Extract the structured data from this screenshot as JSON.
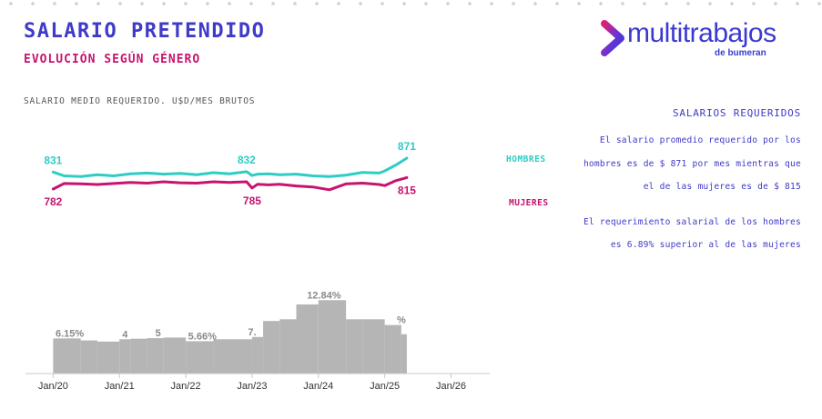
{
  "header": {
    "title": "SALARIO PRETENDIDO",
    "subtitle": "EVOLUCIÓN SEGÚN GÉNERO",
    "unit_label": "SALARIO MEDIO REQUERIDO. U$D/MES BRUTOS"
  },
  "logo": {
    "name": "multitrabajos",
    "tagline": "de bumeran",
    "mark_color": "#3b3ad0"
  },
  "panel": {
    "title": "SALARIOS REQUERIDOS",
    "paragraph1": "El salario promedio requerido por los hombres es de $ 871 por mes mientras que el de las mujeres es de $ 815",
    "paragraph2": "El requerimiento salarial de los hombres es 6.89% superior al de las mujeres"
  },
  "colors": {
    "men": "#2ecdc4",
    "women": "#c8136f",
    "bars": "#b5b5b5",
    "accent": "#3f3ac9"
  },
  "chart_data": [
    {
      "type": "line",
      "x_unit": "month",
      "series": [
        {
          "name": "HOMBRES",
          "color": "#2ecdc4",
          "x": [
            "2020-01",
            "2020-03",
            "2020-06",
            "2020-09",
            "2020-12",
            "2021-03",
            "2021-06",
            "2021-09",
            "2021-12",
            "2022-03",
            "2022-06",
            "2022-09",
            "2022-12",
            "2023-01",
            "2023-02",
            "2023-04",
            "2023-06",
            "2023-09",
            "2023-12",
            "2024-03",
            "2024-06",
            "2024-09",
            "2024-12",
            "2025-01",
            "2025-03",
            "2025-05"
          ],
          "y": [
            831,
            820,
            818,
            823,
            820,
            826,
            828,
            825,
            827,
            823,
            829,
            826,
            832,
            821,
            825,
            826,
            823,
            825,
            820,
            818,
            822,
            830,
            828,
            834,
            851,
            871
          ]
        },
        {
          "name": "MUJERES",
          "color": "#c8136f",
          "x": [
            "2020-01",
            "2020-03",
            "2020-06",
            "2020-09",
            "2020-12",
            "2021-03",
            "2021-06",
            "2021-09",
            "2021-12",
            "2022-03",
            "2022-06",
            "2022-09",
            "2022-12",
            "2023-01",
            "2023-02",
            "2023-04",
            "2023-06",
            "2023-09",
            "2023-12",
            "2024-03",
            "2024-06",
            "2024-09",
            "2024-12",
            "2025-01",
            "2025-03",
            "2025-05"
          ],
          "y": [
            782,
            798,
            797,
            795,
            798,
            801,
            799,
            803,
            800,
            799,
            803,
            801,
            803,
            785,
            796,
            794,
            796,
            791,
            788,
            780,
            797,
            799,
            795,
            792,
            806,
            815
          ]
        }
      ],
      "labels": [
        {
          "text": "831",
          "series": "HOMBRES",
          "x": "2020-01",
          "y": 831
        },
        {
          "text": "782",
          "series": "MUJERES",
          "x": "2020-01",
          "y": 782
        },
        {
          "text": "832",
          "series": "HOMBRES",
          "x": "2022-12",
          "y": 832
        },
        {
          "text": "785",
          "series": "MUJERES",
          "x": "2023-01",
          "y": 785
        },
        {
          "text": "871",
          "series": "HOMBRES",
          "x": "2025-05",
          "y": 871
        },
        {
          "text": "815",
          "series": "MUJERES",
          "x": "2025-05",
          "y": 815
        }
      ],
      "legend": [
        {
          "label": "HOMBRES",
          "color": "#2ecdc4"
        },
        {
          "label": "MUJERES",
          "color": "#c8136f"
        }
      ],
      "legend_position": "right",
      "grid": false
    },
    {
      "type": "bar",
      "x_ticks": [
        "Jan/20",
        "Jan/21",
        "Jan/22",
        "Jan/23",
        "Jan/24",
        "Jan/25",
        "Jan/26"
      ],
      "x_range": [
        "2019-08",
        "2026-08"
      ],
      "bars": [
        {
          "start": "2020-01",
          "end": "2020-06",
          "value": 6.15
        },
        {
          "start": "2020-06",
          "end": "2020-09",
          "value": 5.8
        },
        {
          "start": "2020-09",
          "end": "2021-01",
          "value": 5.6
        },
        {
          "start": "2021-01",
          "end": "2021-03",
          "value": 6.0
        },
        {
          "start": "2021-03",
          "end": "2021-06",
          "value": 6.1
        },
        {
          "start": "2021-06",
          "end": "2021-09",
          "value": 6.2
        },
        {
          "start": "2021-09",
          "end": "2022-01",
          "value": 6.3
        },
        {
          "start": "2022-01",
          "end": "2022-06",
          "value": 5.66
        },
        {
          "start": "2022-06",
          "end": "2023-01",
          "value": 6.0
        },
        {
          "start": "2023-01",
          "end": "2023-03",
          "value": 6.4
        },
        {
          "start": "2023-03",
          "end": "2023-06",
          "value": 9.2
        },
        {
          "start": "2023-06",
          "end": "2023-09",
          "value": 9.5
        },
        {
          "start": "2023-09",
          "end": "2024-01",
          "value": 12.1
        },
        {
          "start": "2024-01",
          "end": "2024-06",
          "value": 12.84
        },
        {
          "start": "2024-06",
          "end": "2024-09",
          "value": 9.5
        },
        {
          "start": "2024-09",
          "end": "2025-01",
          "value": 9.5
        },
        {
          "start": "2025-01",
          "end": "2025-04",
          "value": 8.5
        },
        {
          "start": "2025-04",
          "end": "2025-05",
          "value": 6.89
        }
      ],
      "data_labels": [
        {
          "text": "6.15%",
          "x": "2020-04",
          "y": 6.15
        },
        {
          "text": "4",
          "x": "2021-02",
          "y": 6.0
        },
        {
          "text": "5",
          "x": "2021-08",
          "y": 6.2
        },
        {
          "text": "5.66%",
          "x": "2022-04",
          "y": 5.66
        },
        {
          "text": "7.",
          "x": "2023-01",
          "y": 6.4
        },
        {
          "text": "12.84%",
          "x": "2024-02",
          "y": 12.84
        },
        {
          "text": "%",
          "x": "2025-04",
          "y": 8.5
        }
      ],
      "ylim": [
        0,
        14
      ],
      "grid": false
    }
  ]
}
